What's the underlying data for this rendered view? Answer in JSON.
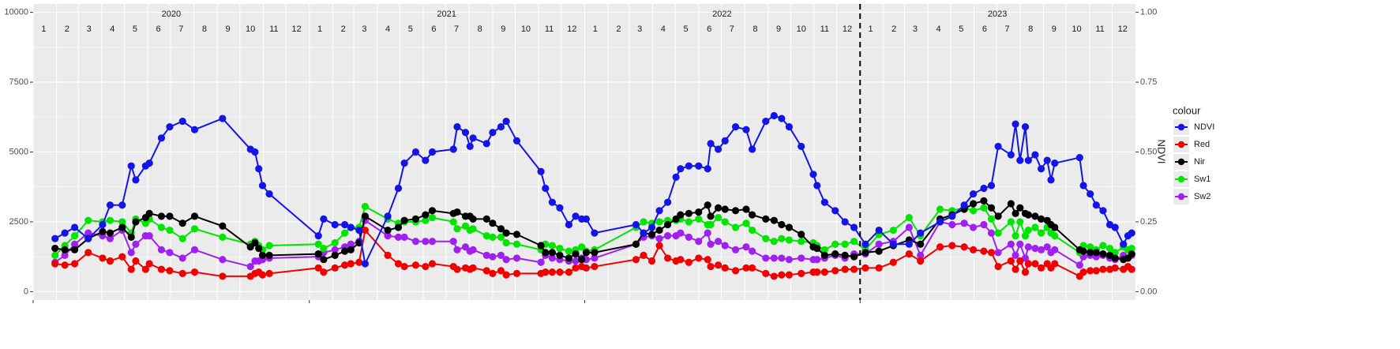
{
  "chart_data": {
    "type": "line",
    "years": [
      "2020",
      "2021",
      "2022",
      "2023"
    ],
    "months": [
      "1",
      "2",
      "3",
      "4",
      "5",
      "6",
      "7",
      "8",
      "9",
      "10",
      "11",
      "12"
    ],
    "xlim": [
      "2020-01-01",
      "2024-01-01"
    ],
    "xticks": [
      "2020-01-01",
      "2021-01-01",
      "2022-01-01",
      "2023-01-01"
    ],
    "vline": "2023-01-01",
    "ylim": [
      -300,
      10300
    ],
    "yticks": [
      0,
      2500,
      5000,
      7500,
      10000
    ],
    "y2lim": [
      -0.03,
      1.03
    ],
    "y2ticks": [
      {
        "value": 0,
        "label": "0.00"
      },
      {
        "value": 0.25,
        "label": "0.25"
      },
      {
        "value": 0.5,
        "label": "0.50"
      },
      {
        "value": 0.75,
        "label": "0.75"
      },
      {
        "value": 1,
        "label": "1.00"
      }
    ],
    "y2label": "NDVI",
    "legend_title": "colour",
    "legend": "right",
    "grid": true,
    "x": [
      "2020-01-30",
      "2020-02-12",
      "2020-02-25",
      "2020-03-14",
      "2020-04-02",
      "2020-04-12",
      "2020-04-28",
      "2020-05-10",
      "2020-05-16",
      "2020-05-29",
      "2020-06-03",
      "2020-06-19",
      "2020-06-30",
      "2020-07-17",
      "2020-08-02",
      "2020-09-08",
      "2020-10-15",
      "2020-10-21",
      "2020-10-26",
      "2020-10-31",
      "2020-11-09",
      "2021-01-13",
      "2021-01-20",
      "2021-02-04",
      "2021-02-17",
      "2021-02-25",
      "2021-03-08",
      "2021-03-16",
      "2021-04-15",
      "2021-04-29",
      "2021-05-07",
      "2021-05-22",
      "2021-06-04",
      "2021-06-13",
      "2021-07-11",
      "2021-07-16",
      "2021-07-27",
      "2021-08-02",
      "2021-08-06",
      "2021-08-24",
      "2021-09-01",
      "2021-09-12",
      "2021-09-19",
      "2021-10-03",
      "2021-11-04",
      "2021-11-10",
      "2021-11-19",
      "2021-11-29",
      "2021-12-11",
      "2021-12-20",
      "2021-12-28",
      "2022-01-03",
      "2022-01-14",
      "2022-03-10",
      "2022-03-20",
      "2022-03-31",
      "2022-04-10",
      "2022-04-21",
      "2022-05-02",
      "2022-05-08",
      "2022-05-19",
      "2022-06-01",
      "2022-06-13",
      "2022-06-17",
      "2022-06-27",
      "2022-07-06",
      "2022-07-20",
      "2022-08-03",
      "2022-08-11",
      "2022-08-29",
      "2022-09-09",
      "2022-09-19",
      "2022-09-29",
      "2022-10-15",
      "2022-10-31",
      "2022-11-05",
      "2022-11-15",
      "2022-11-29",
      "2022-12-12",
      "2022-12-24",
      "2023-01-08",
      "2023-01-26",
      "2023-02-14",
      "2023-03-07",
      "2023-03-22",
      "2023-04-17",
      "2023-05-03",
      "2023-05-19",
      "2023-05-31",
      "2023-06-14",
      "2023-06-24",
      "2023-07-03",
      "2023-07-20",
      "2023-07-26",
      "2023-08-01",
      "2023-08-08",
      "2023-08-12",
      "2023-08-21",
      "2023-08-29",
      "2023-09-06",
      "2023-09-11",
      "2023-09-16",
      "2023-10-19",
      "2023-10-24",
      "2023-11-02",
      "2023-11-10",
      "2023-11-19",
      "2023-11-28",
      "2023-12-05",
      "2023-12-16",
      "2023-12-22",
      "2023-12-27"
    ],
    "series": [
      {
        "name": "NDVI",
        "color": "#1414e6",
        "axis": "y2",
        "values": [
          0.19,
          0.21,
          0.23,
          0.19,
          0.24,
          0.31,
          0.31,
          0.45,
          0.4,
          0.45,
          0.46,
          0.55,
          0.59,
          0.61,
          0.58,
          0.62,
          0.51,
          0.5,
          0.44,
          0.38,
          0.35,
          0.2,
          0.26,
          0.24,
          0.24,
          0.23,
          0.22,
          0.1,
          0.27,
          0.37,
          0.46,
          0.5,
          0.47,
          0.5,
          0.51,
          0.59,
          0.57,
          0.52,
          0.55,
          0.53,
          0.57,
          0.59,
          0.61,
          0.54,
          0.43,
          0.37,
          0.32,
          0.3,
          0.24,
          0.27,
          0.26,
          0.26,
          0.21,
          0.24,
          0.21,
          0.23,
          0.29,
          0.32,
          0.41,
          0.44,
          0.45,
          0.45,
          0.44,
          0.53,
          0.51,
          0.54,
          0.59,
          0.58,
          0.51,
          0.61,
          0.63,
          0.62,
          0.59,
          0.52,
          0.42,
          0.38,
          0.32,
          0.29,
          0.25,
          0.23,
          0.17,
          0.22,
          0.17,
          0.17,
          0.21,
          0.25,
          0.27,
          0.31,
          0.35,
          0.37,
          0.38,
          0.52,
          0.49,
          0.6,
          0.47,
          0.59,
          0.47,
          0.49,
          0.44,
          0.47,
          0.4,
          0.46,
          0.48,
          0.38,
          0.35,
          0.31,
          0.29,
          0.24,
          0.23,
          0.17,
          0.2,
          0.21
        ]
      },
      {
        "name": "Red",
        "color": "#f00000",
        "values": [
          1000,
          950,
          1000,
          1400,
          1200,
          1100,
          1250,
          800,
          1100,
          800,
          1000,
          800,
          750,
          650,
          700,
          550,
          550,
          650,
          700,
          600,
          650,
          850,
          700,
          850,
          950,
          1000,
          1050,
          2200,
          1300,
          1000,
          900,
          950,
          900,
          1000,
          900,
          800,
          850,
          800,
          850,
          750,
          650,
          750,
          600,
          650,
          650,
          700,
          700,
          700,
          700,
          850,
          900,
          850,
          900,
          1150,
          1300,
          1100,
          1650,
          1200,
          1100,
          1150,
          1050,
          1200,
          1150,
          900,
          950,
          850,
          750,
          850,
          850,
          650,
          550,
          600,
          600,
          650,
          700,
          700,
          700,
          750,
          800,
          800,
          850,
          850,
          1050,
          1350,
          1100,
          1600,
          1650,
          1600,
          1500,
          1450,
          1400,
          900,
          1100,
          800,
          1100,
          700,
          1000,
          1000,
          850,
          1000,
          850,
          1000,
          550,
          700,
          750,
          750,
          800,
          800,
          850,
          800,
          900,
          800
        ]
      },
      {
        "name": "Nir",
        "color": "#000000",
        "values": [
          1550,
          1500,
          1500,
          1900,
          2150,
          2100,
          2300,
          1950,
          2500,
          2650,
          2800,
          2700,
          2700,
          2450,
          2700,
          2350,
          1600,
          1750,
          1550,
          1300,
          1300,
          1350,
          1150,
          1300,
          1450,
          1500,
          1750,
          2700,
          2200,
          2300,
          2550,
          2600,
          2750,
          2900,
          2800,
          2850,
          2700,
          2700,
          2600,
          2600,
          2450,
          2250,
          2100,
          2050,
          1650,
          1400,
          1400,
          1300,
          1200,
          1350,
          1150,
          1400,
          1400,
          1700,
          2100,
          2050,
          2200,
          2400,
          2600,
          2750,
          2800,
          2850,
          3100,
          2700,
          3000,
          2950,
          2900,
          2950,
          2750,
          2600,
          2550,
          2400,
          2300,
          2050,
          1600,
          1550,
          1300,
          1350,
          1300,
          1250,
          1400,
          1450,
          1650,
          1850,
          1700,
          2600,
          2750,
          2950,
          3150,
          3250,
          3000,
          2700,
          3150,
          2800,
          3000,
          2800,
          2750,
          2700,
          2600,
          2550,
          2400,
          2300,
          1500,
          1450,
          1400,
          1400,
          1350,
          1300,
          1200,
          1150,
          1200,
          1350
        ]
      },
      {
        "name": "Sw1",
        "color": "#00e600",
        "values": [
          1300,
          1650,
          2000,
          2550,
          2500,
          2550,
          2500,
          2100,
          2600,
          2450,
          2600,
          2300,
          2200,
          1900,
          2250,
          1950,
          1700,
          1800,
          1650,
          1500,
          1650,
          1700,
          1550,
          1750,
          2100,
          2300,
          2300,
          3050,
          2600,
          2450,
          2500,
          2500,
          2550,
          2650,
          2500,
          2250,
          2350,
          2200,
          2250,
          2000,
          1950,
          1950,
          1750,
          1700,
          1500,
          1700,
          1650,
          1550,
          1450,
          1500,
          1600,
          1450,
          1500,
          2300,
          2500,
          2450,
          2500,
          2550,
          2550,
          2600,
          2500,
          2600,
          2400,
          2400,
          2650,
          2500,
          2300,
          2450,
          2200,
          1900,
          1800,
          1900,
          1850,
          1800,
          1750,
          1650,
          1500,
          1700,
          1700,
          1800,
          1500,
          2050,
          2200,
          2650,
          2000,
          2950,
          2900,
          3000,
          2900,
          3000,
          2600,
          2100,
          2500,
          2000,
          2500,
          2000,
          2200,
          2300,
          2100,
          2300,
          2100,
          2000,
          1400,
          1650,
          1600,
          1500,
          1650,
          1550,
          1400,
          1600,
          1500,
          1550
        ]
      },
      {
        "name": "Sw2",
        "color": "#a020f0",
        "values": [
          1050,
          1300,
          1700,
          2100,
          2000,
          1900,
          2200,
          1400,
          1700,
          2000,
          2000,
          1500,
          1400,
          1200,
          1500,
          1150,
          900,
          1100,
          1100,
          1150,
          1200,
          1250,
          1400,
          1500,
          1600,
          1700,
          1800,
          2550,
          2000,
          1950,
          1950,
          1800,
          1800,
          1800,
          1800,
          1500,
          1600,
          1450,
          1500,
          1300,
          1250,
          1300,
          1150,
          1200,
          1050,
          1300,
          1200,
          1150,
          1100,
          1100,
          1200,
          1150,
          1200,
          1700,
          1950,
          2000,
          1900,
          2000,
          2000,
          2100,
          1950,
          1800,
          2100,
          1700,
          1800,
          1650,
          1500,
          1600,
          1450,
          1200,
          1200,
          1200,
          1150,
          1200,
          1150,
          1150,
          1200,
          1300,
          1200,
          1350,
          1350,
          1700,
          1800,
          2300,
          1300,
          2500,
          2400,
          2450,
          2300,
          2400,
          2100,
          1400,
          1700,
          1300,
          1700,
          1200,
          1600,
          1550,
          1500,
          1600,
          1400,
          1500,
          950,
          1250,
          1300,
          1250,
          1300,
          1200,
          1150,
          1300,
          1200,
          1300
        ]
      }
    ]
  }
}
